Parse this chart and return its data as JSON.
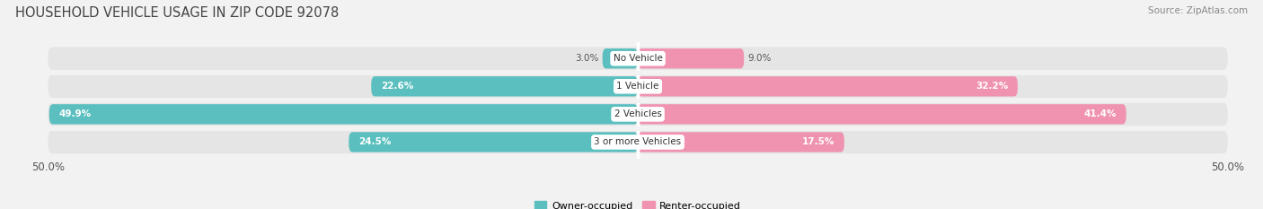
{
  "title": "HOUSEHOLD VEHICLE USAGE IN ZIP CODE 92078",
  "source": "Source: ZipAtlas.com",
  "categories": [
    "No Vehicle",
    "1 Vehicle",
    "2 Vehicles",
    "3 or more Vehicles"
  ],
  "owner_values": [
    3.0,
    22.6,
    49.9,
    24.5
  ],
  "renter_values": [
    9.0,
    32.2,
    41.4,
    17.5
  ],
  "owner_color": "#5bbfbf",
  "renter_color": "#f093b0",
  "owner_label": "Owner-occupied",
  "renter_label": "Renter-occupied",
  "xlim": [
    -50,
    50
  ],
  "background_color": "#f2f2f2",
  "row_background_color": "#e5e5e5",
  "title_fontsize": 10.5,
  "source_fontsize": 7.5,
  "value_fontsize": 7.5,
  "cat_fontsize": 7.5,
  "legend_fontsize": 8.0
}
